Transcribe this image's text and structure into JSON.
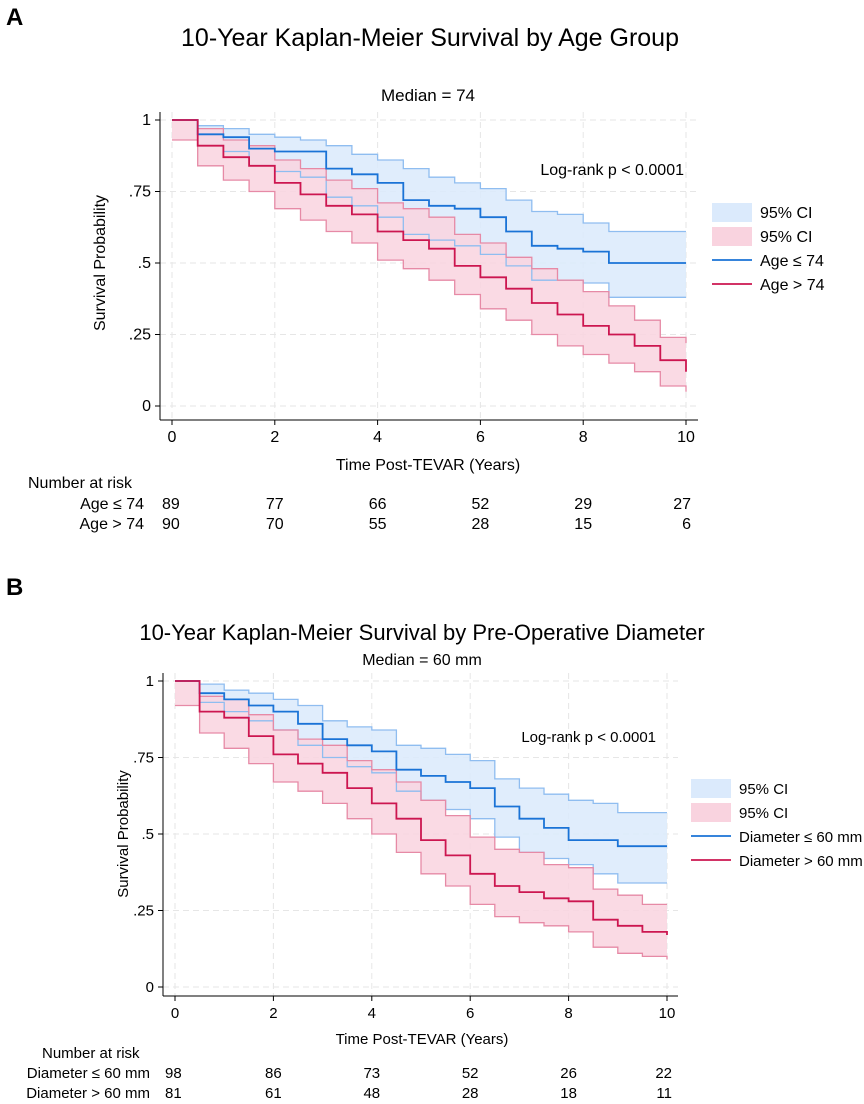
{
  "chart_data": [
    {
      "type": "line",
      "panel_label": "A",
      "title": "10-Year Kaplan-Meier Survival by Age Group",
      "subtitle": "Median = 74",
      "xlabel": "Time Post-TEVAR (Years)",
      "ylabel": "Survival Probability",
      "xlim": [
        0,
        10
      ],
      "ylim": [
        0,
        1
      ],
      "xticks": [
        "0",
        "2",
        "4",
        "6",
        "8",
        "10"
      ],
      "yticks": [
        "0",
        ".25",
        ".5",
        ".75",
        "1"
      ],
      "grid": true,
      "annotation": "Log-rank p < 0.0001",
      "legend_position": "right",
      "legend": [
        "95% CI",
        "95% CI",
        "Age ≤ 74",
        "Age > 74"
      ],
      "x": [
        0,
        0.5,
        1,
        1.5,
        2,
        2.5,
        3,
        3.5,
        4,
        4.5,
        5,
        5.5,
        6,
        6.5,
        7,
        7.5,
        8,
        8.5,
        9,
        9.5,
        10
      ],
      "series": [
        {
          "name": "Age ≤ 74",
          "color": "#1a73d6",
          "ci_color": "#dbeafc",
          "ci_line": "#8fbdf0",
          "values": [
            1,
            0.95,
            0.94,
            0.9,
            0.89,
            0.89,
            0.83,
            0.81,
            0.78,
            0.72,
            0.7,
            0.69,
            0.66,
            0.61,
            0.56,
            0.55,
            0.54,
            0.5,
            0.5,
            0.5,
            0.5
          ],
          "upper": [
            1,
            0.98,
            0.97,
            0.95,
            0.94,
            0.93,
            0.91,
            0.88,
            0.86,
            0.83,
            0.8,
            0.78,
            0.76,
            0.72,
            0.68,
            0.67,
            0.64,
            0.61,
            0.61,
            0.61,
            0.61
          ],
          "lower": [
            1,
            0.91,
            0.89,
            0.84,
            0.82,
            0.8,
            0.73,
            0.7,
            0.66,
            0.6,
            0.58,
            0.56,
            0.53,
            0.49,
            0.44,
            0.44,
            0.43,
            0.38,
            0.38,
            0.38,
            0.38
          ]
        },
        {
          "name": "Age > 74",
          "color": "#cc1650",
          "ci_color": "#f9d3df",
          "ci_line": "#e68aa6",
          "values": [
            1,
            0.91,
            0.87,
            0.84,
            0.78,
            0.74,
            0.7,
            0.67,
            0.61,
            0.58,
            0.55,
            0.49,
            0.45,
            0.41,
            0.36,
            0.32,
            0.28,
            0.25,
            0.21,
            0.16,
            0.12
          ],
          "upper": [
            1,
            0.97,
            0.93,
            0.91,
            0.86,
            0.83,
            0.79,
            0.76,
            0.71,
            0.69,
            0.66,
            0.6,
            0.57,
            0.52,
            0.48,
            0.44,
            0.4,
            0.35,
            0.3,
            0.24,
            0.22
          ],
          "lower": [
            0.93,
            0.84,
            0.79,
            0.75,
            0.69,
            0.65,
            0.61,
            0.57,
            0.51,
            0.48,
            0.44,
            0.39,
            0.34,
            0.3,
            0.25,
            0.21,
            0.18,
            0.15,
            0.12,
            0.07,
            0.05
          ]
        }
      ],
      "risk_table": {
        "title": "Number at risk",
        "rows": [
          {
            "label": "Age ≤ 74",
            "values": [
              "89",
              "77",
              "66",
              "52",
              "29",
              "27"
            ]
          },
          {
            "label": "Age > 74",
            "values": [
              "90",
              "70",
              "55",
              "28",
              "15",
              "6"
            ]
          }
        ]
      }
    },
    {
      "type": "line",
      "panel_label": "B",
      "title": "10-Year Kaplan-Meier Survival by Pre-Operative Diameter",
      "subtitle": "Median = 60 mm",
      "xlabel": "Time Post-TEVAR (Years)",
      "ylabel": "Survival Probability",
      "xlim": [
        0,
        10
      ],
      "ylim": [
        0,
        1
      ],
      "xticks": [
        "0",
        "2",
        "4",
        "6",
        "8",
        "10"
      ],
      "yticks": [
        "0",
        ".25",
        ".5",
        ".75",
        "1"
      ],
      "grid": true,
      "annotation": "Log-rank p < 0.0001",
      "legend_position": "right",
      "legend": [
        "95% CI",
        "95% CI",
        "Diameter ≤ 60 mm",
        "Diameter > 60 mm"
      ],
      "x": [
        0,
        0.5,
        1,
        1.5,
        2,
        2.5,
        3,
        3.5,
        4,
        4.5,
        5,
        5.5,
        6,
        6.5,
        7,
        7.5,
        8,
        8.5,
        9,
        9.5,
        10
      ],
      "series": [
        {
          "name": "Diameter ≤ 60 mm",
          "color": "#1a73d6",
          "ci_color": "#dbeafc",
          "ci_line": "#8fbdf0",
          "values": [
            1,
            0.96,
            0.94,
            0.92,
            0.9,
            0.86,
            0.81,
            0.79,
            0.77,
            0.71,
            0.69,
            0.67,
            0.65,
            0.59,
            0.55,
            0.52,
            0.48,
            0.48,
            0.46,
            0.46,
            0.46
          ],
          "upper": [
            1,
            0.99,
            0.97,
            0.96,
            0.94,
            0.92,
            0.87,
            0.85,
            0.84,
            0.79,
            0.78,
            0.76,
            0.74,
            0.68,
            0.65,
            0.63,
            0.61,
            0.6,
            0.57,
            0.57,
            0.57
          ],
          "lower": [
            1,
            0.93,
            0.9,
            0.87,
            0.84,
            0.79,
            0.75,
            0.72,
            0.7,
            0.64,
            0.61,
            0.58,
            0.55,
            0.49,
            0.44,
            0.42,
            0.4,
            0.37,
            0.34,
            0.34,
            0.34
          ]
        },
        {
          "name": "Diameter > 60 mm",
          "color": "#cc1650",
          "ci_color": "#f9d3df",
          "ci_line": "#e68aa6",
          "values": [
            1,
            0.9,
            0.88,
            0.82,
            0.76,
            0.73,
            0.7,
            0.65,
            0.6,
            0.55,
            0.48,
            0.43,
            0.37,
            0.33,
            0.31,
            0.29,
            0.28,
            0.22,
            0.2,
            0.18,
            0.17
          ],
          "upper": [
            1,
            0.95,
            0.94,
            0.89,
            0.84,
            0.81,
            0.79,
            0.74,
            0.71,
            0.67,
            0.61,
            0.56,
            0.49,
            0.45,
            0.44,
            0.4,
            0.39,
            0.32,
            0.3,
            0.27,
            0.27
          ],
          "lower": [
            0.92,
            0.83,
            0.78,
            0.73,
            0.67,
            0.64,
            0.6,
            0.55,
            0.5,
            0.44,
            0.37,
            0.33,
            0.27,
            0.23,
            0.21,
            0.2,
            0.18,
            0.13,
            0.11,
            0.1,
            0.09
          ]
        }
      ],
      "risk_table": {
        "title": "Number at risk",
        "rows": [
          {
            "label": "Diameter ≤ 60 mm",
            "values": [
              "98",
              "86",
              "73",
              "52",
              "26",
              "22"
            ]
          },
          {
            "label": "Diameter > 60 mm",
            "values": [
              "81",
              "61",
              "48",
              "28",
              "18",
              "11"
            ]
          }
        ]
      }
    }
  ]
}
